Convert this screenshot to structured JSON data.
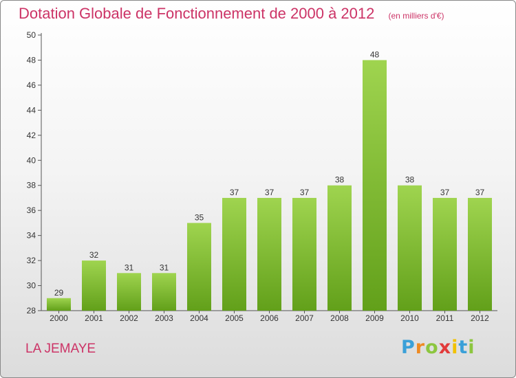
{
  "header": {
    "title": "Dotation Globale de Fonctionnement de 2000 à 2012",
    "subtitle": "(en milliers d'€)"
  },
  "footer": {
    "commune": "LA JEMAYE",
    "logo": "Proxiti"
  },
  "colors": {
    "bar_top": "#9fd44f",
    "bar_bottom": "#62a01a",
    "title": "#cc3366"
  },
  "chart_data": {
    "type": "bar",
    "categories": [
      "2000",
      "2001",
      "2002",
      "2003",
      "2004",
      "2005",
      "2006",
      "2007",
      "2008",
      "2009",
      "2010",
      "2011",
      "2012"
    ],
    "values": [
      29,
      32,
      31,
      31,
      35,
      37,
      37,
      37,
      38,
      48,
      38,
      37,
      37
    ],
    "title": "Dotation Globale de Fonctionnement de 2000 à 2012",
    "subtitle": "(en milliers d'€)",
    "xlabel": "",
    "ylabel": "",
    "ylim": [
      28,
      50
    ],
    "yticks": [
      28,
      30,
      32,
      34,
      36,
      38,
      40,
      42,
      44,
      46,
      48,
      50
    ],
    "grid": false,
    "data_labels": true
  }
}
